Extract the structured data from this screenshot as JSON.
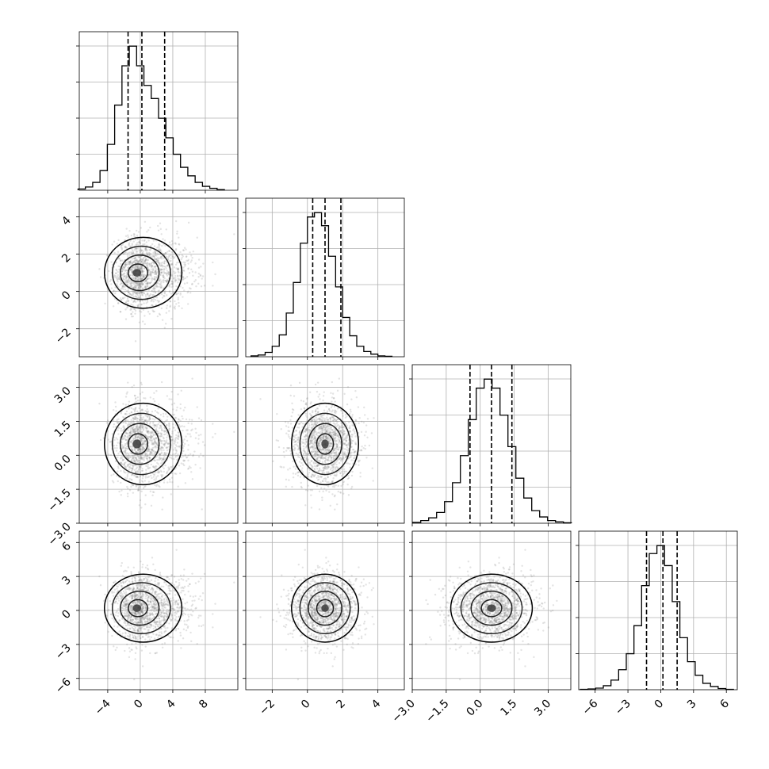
{
  "chart_data": {
    "type": "corner",
    "parameters": [
      {
        "xlim": [
          -7.5,
          12.0
        ],
        "ticks": [
          -4,
          0,
          4,
          8
        ],
        "tick_labels": [
          "−4",
          "0",
          "4",
          "8"
        ],
        "hist_x": [
          -7.2,
          -6.3,
          -5.4,
          -4.5,
          -3.6,
          -2.7,
          -1.8,
          -0.9,
          0.0,
          0.9,
          1.8,
          2.7,
          3.6,
          4.5,
          5.4,
          6.3,
          7.2,
          8.1,
          9.0,
          9.9
        ],
        "hist_counts": [
          0.2,
          0.5,
          1.2,
          3.0,
          7.0,
          13.0,
          19.0,
          22.0,
          19.0,
          16.0,
          14.0,
          11.0,
          8.0,
          5.5,
          3.5,
          2.2,
          1.2,
          0.6,
          0.3,
          0.1
        ],
        "quantiles": [
          -1.5,
          0.2,
          3.0
        ]
      },
      {
        "xlim": [
          -3.5,
          5.5
        ],
        "ticks": [
          -2,
          0,
          2,
          4
        ],
        "tick_labels": [
          "−2",
          "0",
          "2",
          "4"
        ],
        "hist_x": [
          -3.0,
          -2.6,
          -2.2,
          -1.8,
          -1.4,
          -1.0,
          -0.6,
          -0.2,
          0.2,
          0.6,
          1.0,
          1.4,
          1.8,
          2.2,
          2.6,
          3.0,
          3.4,
          3.8,
          4.2,
          4.6
        ],
        "hist_counts": [
          0.1,
          0.2,
          0.5,
          1.2,
          2.5,
          5.0,
          8.5,
          13.0,
          16.0,
          16.5,
          15.0,
          11.5,
          8.0,
          4.5,
          2.4,
          1.2,
          0.6,
          0.3,
          0.1,
          0.05
        ],
        "quantiles": [
          0.3,
          1.0,
          1.9
        ]
      },
      {
        "xlim": [
          -3.0,
          4.0
        ],
        "ticks": [
          -3.0,
          -1.5,
          0.0,
          1.5,
          3.0
        ],
        "tick_labels": [
          "−3.0",
          "−1.5",
          "0.0",
          "1.5",
          "3.0"
        ],
        "hist_x": [
          -2.8,
          -2.45,
          -2.1,
          -1.75,
          -1.4,
          -1.05,
          -0.7,
          -0.35,
          0.0,
          0.35,
          0.7,
          1.05,
          1.4,
          1.75,
          2.1,
          2.45,
          2.8,
          3.15,
          3.5,
          3.85
        ],
        "hist_counts": [
          0.1,
          0.3,
          0.6,
          1.2,
          2.4,
          4.5,
          7.5,
          11.5,
          15.0,
          16.0,
          15.0,
          12.0,
          8.5,
          5.0,
          2.8,
          1.4,
          0.7,
          0.3,
          0.15,
          0.05
        ],
        "quantiles": [
          -0.45,
          0.5,
          1.4
        ]
      },
      {
        "xlim": [
          -7.5,
          7.0
        ],
        "ticks": [
          -6,
          -3,
          0,
          3,
          6
        ],
        "tick_labels": [
          "−6",
          "−3",
          "0",
          "3",
          "6"
        ],
        "hist_x": [
          -7.0,
          -6.3,
          -5.6,
          -4.9,
          -4.2,
          -3.5,
          -2.8,
          -2.1,
          -1.4,
          -0.7,
          0.0,
          0.7,
          1.4,
          2.1,
          2.8,
          3.5,
          4.2,
          4.9,
          5.6,
          6.3
        ],
        "hist_counts": [
          0.05,
          0.1,
          0.2,
          0.5,
          1.2,
          2.5,
          4.5,
          8.0,
          13.0,
          17.0,
          18.0,
          15.5,
          11.0,
          6.5,
          3.5,
          1.8,
          0.8,
          0.4,
          0.15,
          0.05
        ],
        "quantiles": [
          -1.3,
          0.2,
          1.5
        ]
      }
    ],
    "y_axes": [
      null,
      {
        "ylim": [
          -3.5,
          5.0
        ],
        "ticks": [
          -2,
          0,
          2,
          4
        ],
        "tick_labels": [
          "−2",
          "0",
          "2",
          "4"
        ]
      },
      {
        "ylim": [
          -3.0,
          4.0
        ],
        "ticks": [
          -3.0,
          -1.5,
          0.0,
          1.5,
          3.0
        ],
        "tick_labels": [
          "−3.0",
          "−1.5",
          "0.0",
          "1.5",
          "3.0"
        ]
      },
      {
        "ylim": [
          -7.0,
          7.0
        ],
        "ticks": [
          -6,
          -3,
          0,
          3,
          6
        ],
        "tick_labels": [
          "−6",
          "−3",
          "0",
          "3",
          "6"
        ]
      }
    ],
    "samples": {
      "means": [
        0.8,
        1.0,
        0.5,
        0.2
      ],
      "sds": [
        2.3,
        0.95,
        0.9,
        1.5
      ]
    },
    "scatter_count": 1500,
    "grid": true
  }
}
